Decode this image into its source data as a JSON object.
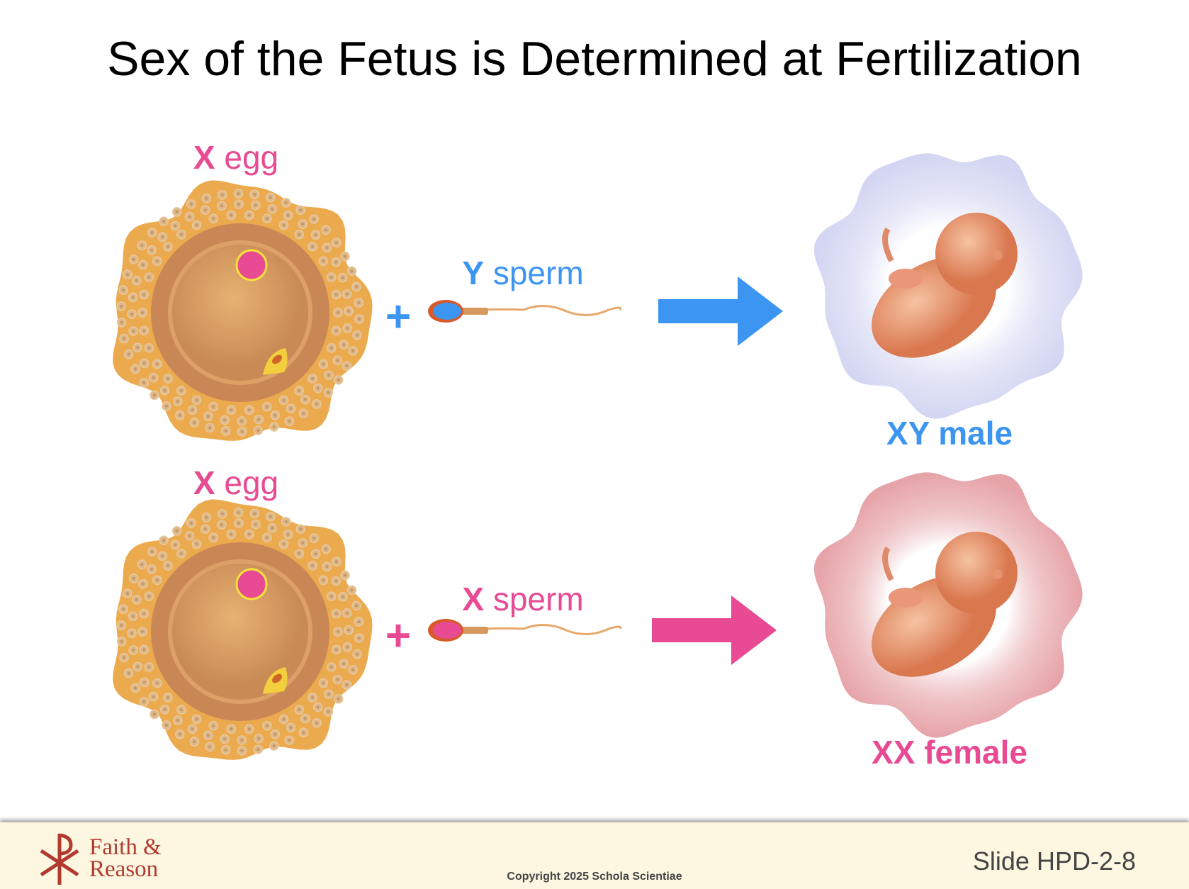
{
  "title": "Sex of the Fetus is Determined at Fertilization",
  "rows": [
    {
      "egg_label_x": "X",
      "egg_label_rest": "egg",
      "sperm_label_x": "Y",
      "sperm_label_rest": "sperm",
      "result_label": "XY male",
      "color": "#3d95f2",
      "cloud_color": "#d3d6f2"
    },
    {
      "egg_label_x": "X",
      "egg_label_rest": "egg",
      "sperm_label_x": "X",
      "sperm_label_rest": "sperm",
      "result_label": "XX female",
      "color": "#e84a93",
      "cloud_color": "#e6a3a8"
    }
  ],
  "plus": "+",
  "footer": {
    "logo_line1": "Faith &",
    "logo_line2": "Reason",
    "copyright": "Copyright 2025 Schola Scientiae",
    "slide": "Slide HPD-2-8"
  }
}
